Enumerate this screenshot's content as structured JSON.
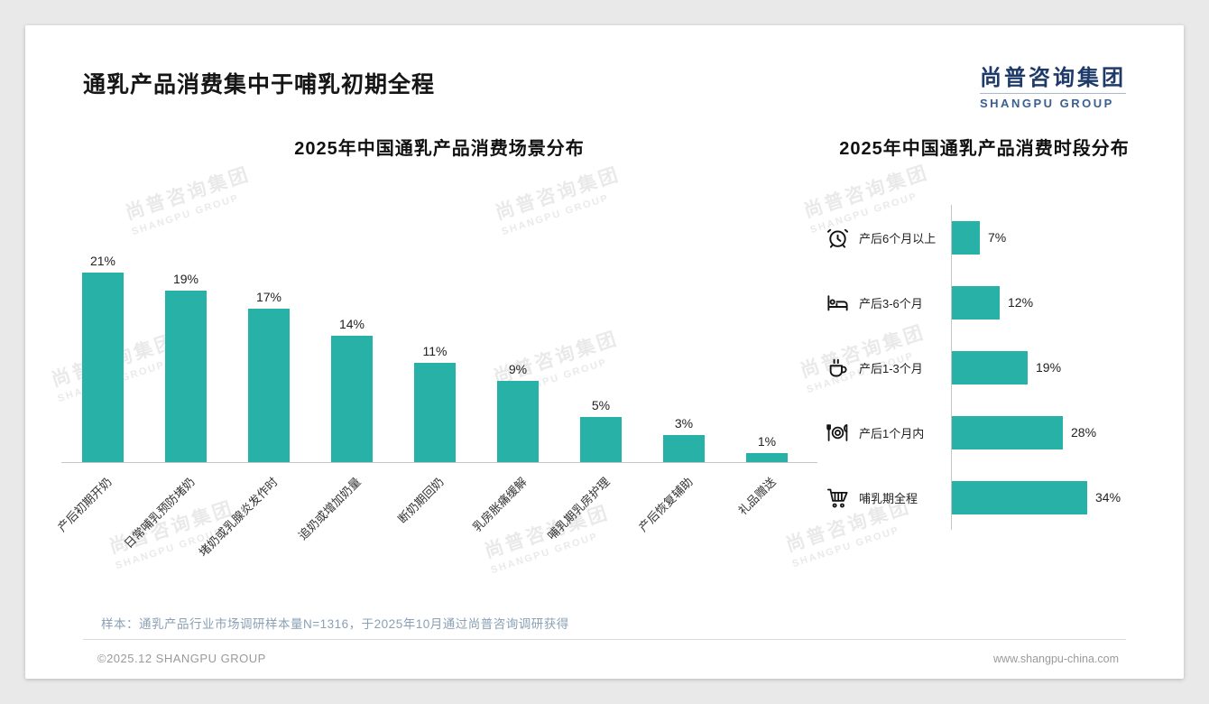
{
  "slide": {
    "title": "通乳产品消费集中于哺乳初期全程",
    "logo": {
      "cn": "尚普咨询集团",
      "en": "SHANGPU GROUP"
    },
    "watermark": {
      "cn": "尚普咨询集团",
      "en": "SHANGPU GROUP"
    },
    "footer": {
      "sample_note": "样本：通乳产品行业市场调研样本量N=1316，于2025年10月通过尚普咨询调研获得",
      "copyright": "©2025.12 SHANGPU GROUP",
      "website": "www.shangpu-china.com"
    },
    "colors": {
      "bar": "#27b1a7",
      "logo_navy": "#1e3a68",
      "axis": "#c6c6c6"
    }
  },
  "chart_data": [
    {
      "type": "bar",
      "orientation": "vertical",
      "title": "2025年中国通乳产品消费场景分布",
      "categories": [
        "产后初期开奶",
        "日常哺乳预防堵奶",
        "堵奶或乳腺炎发作时",
        "追奶或增加奶量",
        "断奶期回奶",
        "乳房胀痛缓解",
        "哺乳期乳房护理",
        "产后恢复辅助",
        "礼品赠送"
      ],
      "values": [
        21,
        19,
        17,
        14,
        11,
        9,
        5,
        3,
        1
      ],
      "value_suffix": "%",
      "ylim": [
        0,
        24
      ],
      "grid": false,
      "bar_color": "#27b1a7"
    },
    {
      "type": "bar",
      "orientation": "horizontal",
      "title": "2025年中国通乳产品消费时段分布",
      "categories": [
        "产后6个月以上",
        "产后3-6个月",
        "产后1-3个月",
        "产后1个月内",
        "哺乳期全程"
      ],
      "values": [
        7,
        12,
        19,
        28,
        34
      ],
      "icons": [
        "alarm-clock-icon",
        "bed-icon",
        "coffee-icon",
        "dining-icon",
        "cart-icon"
      ],
      "value_suffix": "%",
      "xlim": [
        0,
        40
      ],
      "grid": false,
      "bar_color": "#27b1a7"
    }
  ]
}
